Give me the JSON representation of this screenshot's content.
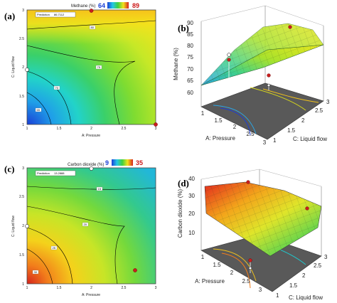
{
  "chart_data": [
    {
      "id": "a",
      "panel_label": "(a)",
      "type": "contour",
      "title": "Methane (%)",
      "legend": {
        "min": "64",
        "max": "89",
        "min_color": "#1a3fd6",
        "max_color": "#cc1a1a"
      },
      "xlabel": "A: Pressure",
      "ylabel": "C: Liquid flow",
      "xlim": [
        1,
        3
      ],
      "ylim": [
        1,
        3
      ],
      "xticks": [
        "1",
        "1.5",
        "2",
        "2.5",
        "3"
      ],
      "yticks": [
        "1",
        "1.5",
        "2",
        "2.5",
        "3"
      ],
      "prediction_label": "Prediction",
      "prediction_value": "86.7112",
      "contour_labels": [
        "80",
        "75",
        "70",
        "65"
      ],
      "design_points": [
        {
          "x": 2,
          "y": 3
        },
        {
          "x": 1,
          "y": 2
        },
        {
          "x": 3,
          "y": 1
        }
      ]
    },
    {
      "id": "b",
      "panel_label": "(b)",
      "type": "surface3d",
      "zlabel": "Methane (%)",
      "xlabel": "A: Pressure",
      "ylabel": "C: Liquid flow",
      "zticks": [
        "60",
        "65",
        "70",
        "75",
        "80",
        "85",
        "90"
      ],
      "zlim": [
        60,
        90
      ],
      "xticks": [
        "1",
        "1.5",
        "2",
        "2.5",
        "3"
      ],
      "yticks": [
        "1",
        "1.5",
        "2",
        "2.5",
        "3"
      ]
    },
    {
      "id": "c",
      "panel_label": "(c)",
      "type": "contour",
      "title": "Carbon dioxide (%)",
      "legend": {
        "min": "9",
        "max": "35",
        "min_color": "#1a3fd6",
        "max_color": "#cc1a1a"
      },
      "xlabel": "A: Pressure",
      "ylabel": "C: Liquid flow",
      "xlim": [
        1,
        3
      ],
      "ylim": [
        1,
        3
      ],
      "xticks": [
        "1",
        "1.5",
        "2",
        "2.5",
        "3"
      ],
      "yticks": [
        "1",
        "1.5",
        "2",
        "2.5",
        "3"
      ],
      "prediction_label": "Prediction",
      "prediction_value": "13.2888",
      "contour_labels": [
        "15",
        "20",
        "25",
        "30"
      ],
      "design_points": [
        {
          "x": 2,
          "y": 3
        },
        {
          "x": 1,
          "y": 2
        },
        {
          "x": 2.5,
          "y": 1.2
        }
      ]
    },
    {
      "id": "d",
      "panel_label": "(d)",
      "type": "surface3d",
      "zlabel": "Carbon dioxide (%)",
      "xlabel": "A: Pressure",
      "ylabel": "C: Liquid flow",
      "zticks": [
        "10",
        "20",
        "30",
        "40"
      ],
      "zlim": [
        10,
        40
      ],
      "xticks": [
        "1",
        "1.5",
        "2",
        "2.5",
        "3"
      ],
      "yticks": [
        "1",
        "1.5",
        "2",
        "2.5",
        "3"
      ]
    }
  ]
}
